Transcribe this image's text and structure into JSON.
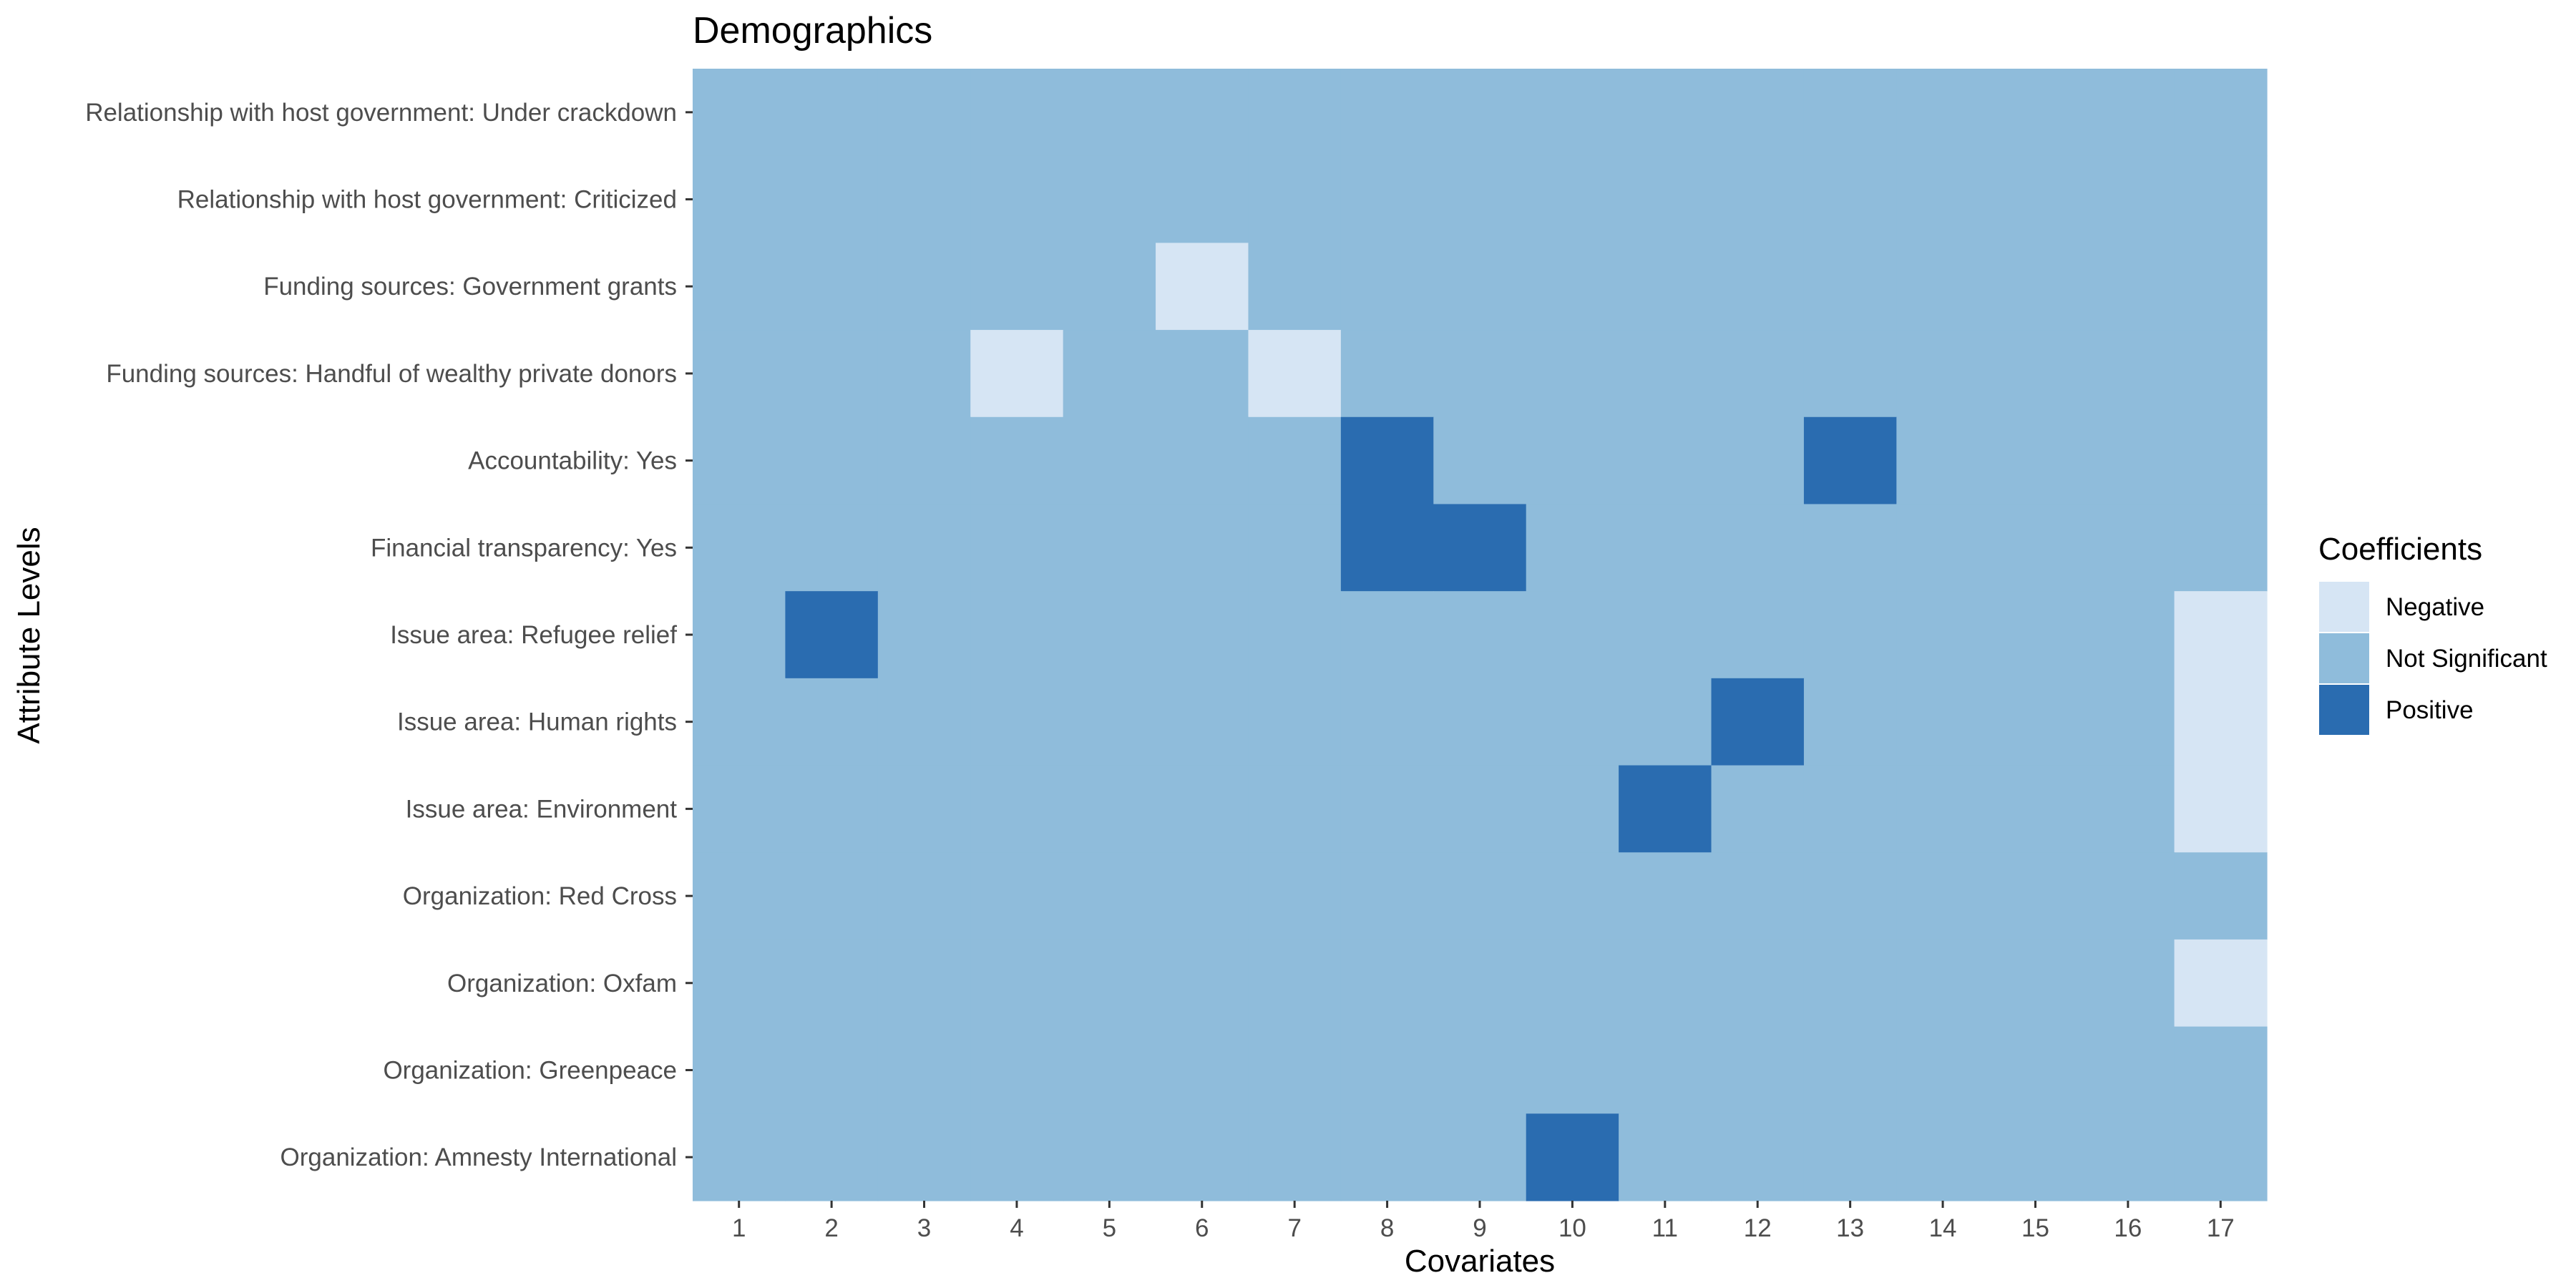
{
  "chart_data": {
    "type": "heatmap",
    "title": "Demographics",
    "xlabel": "Covariates",
    "ylabel": "Attribute Levels",
    "x_categories": [
      "1",
      "2",
      "3",
      "4",
      "5",
      "6",
      "7",
      "8",
      "9",
      "10",
      "11",
      "12",
      "13",
      "14",
      "15",
      "16",
      "17"
    ],
    "y_categories": [
      "Relationship with host government: Under crackdown",
      "Relationship with host government: Criticized",
      "Funding sources: Government grants",
      "Funding sources: Handful of wealthy private donors",
      "Accountability: Yes",
      "Financial transparency: Yes",
      "Issue area: Refugee relief",
      "Issue area: Human rights",
      "Issue area: Environment",
      "Organization: Red Cross",
      "Organization: Oxfam",
      "Organization: Greenpeace",
      "Organization: Amnesty International"
    ],
    "default_value": "Not Significant",
    "cells": [
      {
        "x": "6",
        "y": "Funding sources: Government grants",
        "value": "Negative"
      },
      {
        "x": "4",
        "y": "Funding sources: Handful of wealthy private donors",
        "value": "Negative"
      },
      {
        "x": "7",
        "y": "Funding sources: Handful of wealthy private donors",
        "value": "Negative"
      },
      {
        "x": "8",
        "y": "Accountability: Yes",
        "value": "Positive"
      },
      {
        "x": "13",
        "y": "Accountability: Yes",
        "value": "Positive"
      },
      {
        "x": "8",
        "y": "Financial transparency: Yes",
        "value": "Positive"
      },
      {
        "x": "9",
        "y": "Financial transparency: Yes",
        "value": "Positive"
      },
      {
        "x": "2",
        "y": "Issue area: Refugee relief",
        "value": "Positive"
      },
      {
        "x": "17",
        "y": "Issue area: Refugee relief",
        "value": "Negative"
      },
      {
        "x": "12",
        "y": "Issue area: Human rights",
        "value": "Positive"
      },
      {
        "x": "17",
        "y": "Issue area: Human rights",
        "value": "Negative"
      },
      {
        "x": "11",
        "y": "Issue area: Environment",
        "value": "Positive"
      },
      {
        "x": "17",
        "y": "Issue area: Environment",
        "value": "Negative"
      },
      {
        "x": "17",
        "y": "Organization: Oxfam",
        "value": "Negative"
      },
      {
        "x": "10",
        "y": "Organization: Amnesty International",
        "value": "Positive"
      }
    ],
    "legend": {
      "title": "Coefficients",
      "placement": "right",
      "entries": [
        {
          "label": "Negative",
          "color": "#d6e5f4"
        },
        {
          "label": "Not Significant",
          "color": "#8fbcdb"
        },
        {
          "label": "Positive",
          "color": "#2a6cb0"
        }
      ]
    },
    "grid": false
  }
}
